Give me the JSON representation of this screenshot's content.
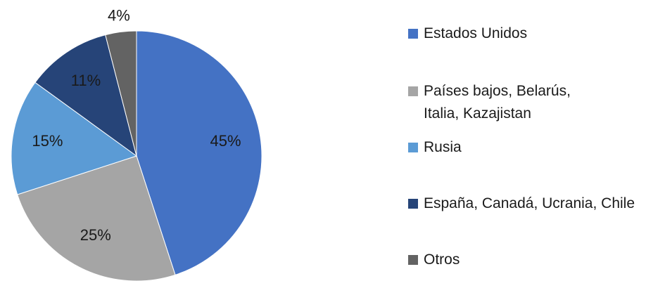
{
  "chart_data": {
    "type": "pie",
    "categories": [
      "Estados Unidos",
      "Países bajos, Belarús, Italia, Kazajistan",
      "Rusia",
      "España, Canadá, Ucrania, Chile",
      "Otros"
    ],
    "values": [
      45,
      25,
      15,
      11,
      4
    ],
    "value_labels": [
      "45%",
      "25%",
      "15%",
      "11%",
      "4%"
    ],
    "colors": [
      "#4472c4",
      "#a5a5a5",
      "#5b9bd5",
      "#264478",
      "#636363"
    ],
    "legend": "right"
  }
}
